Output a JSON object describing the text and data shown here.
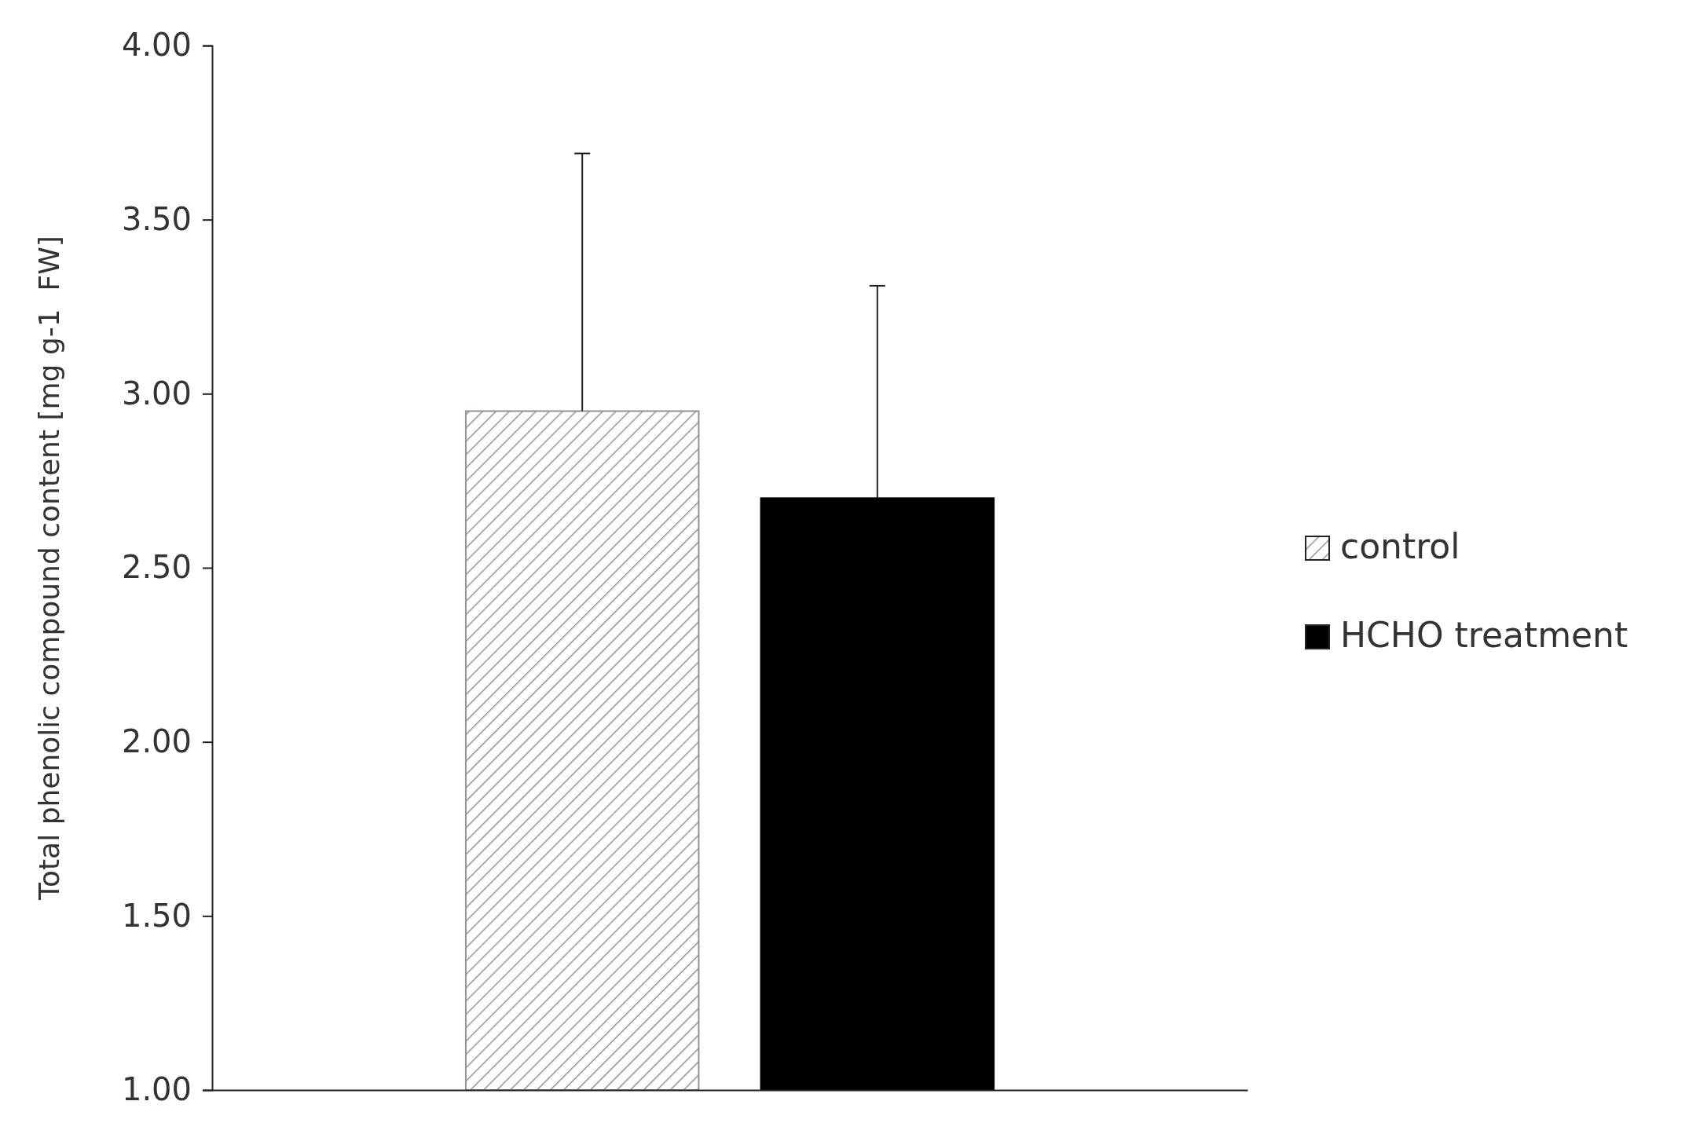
{
  "chart_data": {
    "type": "bar",
    "ylabel": "Total phenolic compound content [mg g-1  FW]",
    "categories": [
      null
    ],
    "series": [
      {
        "name": "control",
        "color": "#9a9090",
        "values": [
          2.95
        ],
        "errors": [
          [
            2.95,
            3.69
          ]
        ]
      },
      {
        "name": "HCHO treatment",
        "color": "#000000",
        "values": [
          2.7
        ],
        "errors": [
          [
            2.7,
            3.31
          ]
        ]
      }
    ],
    "ylim": [
      1,
      4
    ],
    "yticks": [
      {
        "value": 1,
        "label": "1.00"
      },
      {
        "value": 1.5,
        "label": "1.50"
      },
      {
        "value": 2,
        "label": "2.00"
      },
      {
        "value": 2.5,
        "label": "2.50"
      },
      {
        "value": 3,
        "label": "3.00"
      },
      {
        "value": 3.5,
        "label": "3.50"
      },
      {
        "value": 4,
        "label": "4.00"
      }
    ],
    "grid": false,
    "legend": "right"
  }
}
